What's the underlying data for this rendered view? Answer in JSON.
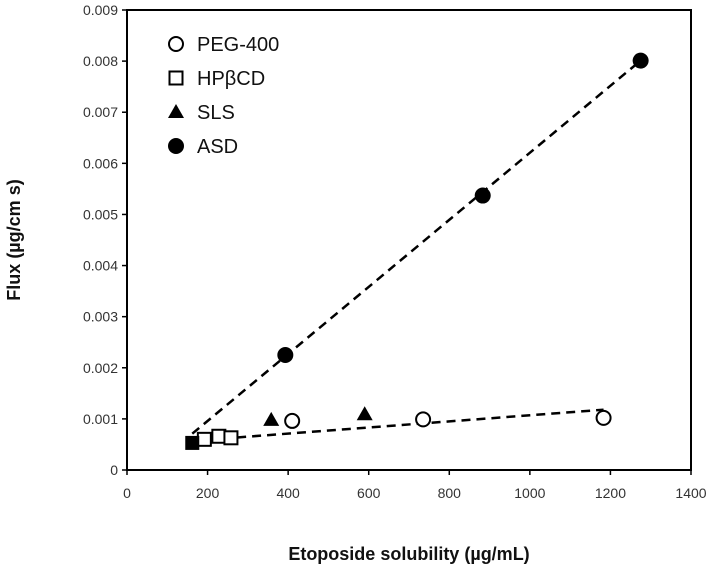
{
  "chart_data": {
    "type": "scatter",
    "xlabel": "Etoposide solubility (µg/mL)",
    "ylabel": "Flux (µg/cm s)",
    "xlim": [
      0,
      1400
    ],
    "ylim": [
      0,
      0.009
    ],
    "x_ticks": [
      "0",
      "200",
      "400",
      "600",
      "800",
      "1000",
      "1200",
      "1400"
    ],
    "y_ticks": [
      "0",
      "0.001",
      "0.002",
      "0.003",
      "0.004",
      "0.005",
      "0.006",
      "0.007",
      "0.008",
      "0.009"
    ],
    "grid": false,
    "legend_position": "top-left",
    "series": [
      {
        "name": "PEG-400",
        "marker": "open-circle",
        "points": [
          [
            410,
            0.00096
          ],
          [
            735,
            0.00099
          ],
          [
            1183,
            0.00102
          ]
        ]
      },
      {
        "name": "HPβCD",
        "marker": "open-square",
        "points": [
          [
            192,
            0.0006
          ],
          [
            228,
            0.00066
          ],
          [
            258,
            0.00063
          ]
        ]
      },
      {
        "name": "SLS",
        "marker": "filled-triangle",
        "points": [
          [
            358,
            0.00098
          ],
          [
            590,
            0.00109
          ]
        ]
      },
      {
        "name": "ASD",
        "marker": "filled-circle",
        "points": [
          [
            393,
            0.00225
          ],
          [
            883,
            0.00537
          ],
          [
            1275,
            0.00801
          ]
        ]
      },
      {
        "name": "",
        "marker": "filled-square",
        "points": [
          [
            162,
            0.00053
          ]
        ]
      }
    ],
    "trendlines": [
      {
        "style": "dashed",
        "from": [
          162,
          0.00071
        ],
        "to": [
          1275,
          0.00801
        ]
      },
      {
        "style": "dashed",
        "from": [
          162,
          0.00057
        ],
        "to": [
          1183,
          0.00118
        ]
      }
    ]
  }
}
